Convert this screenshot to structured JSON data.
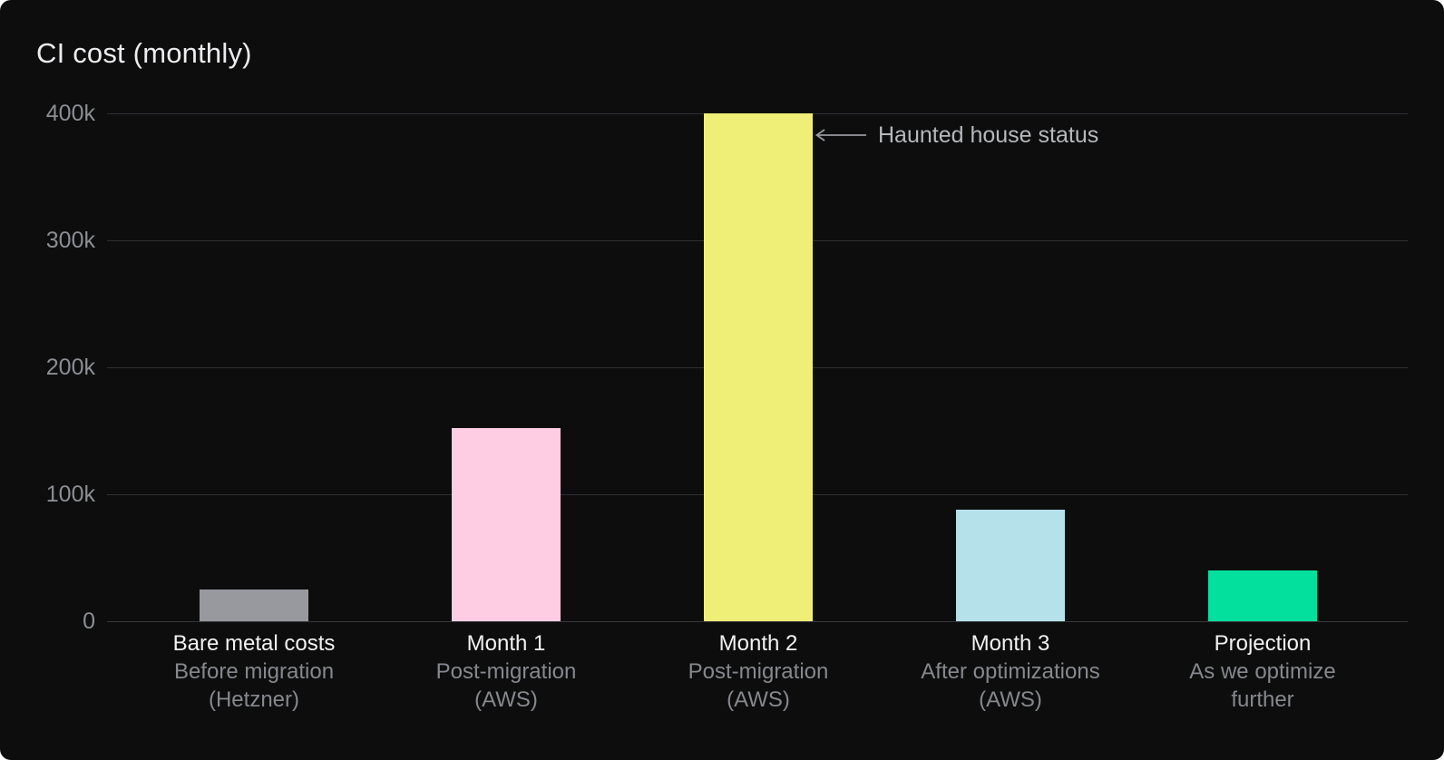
{
  "chart_data": {
    "type": "bar",
    "title": "CI cost (monthly)",
    "xlabel": "",
    "ylabel": "",
    "ylim": [
      0,
      400000
    ],
    "grid": "horizontal",
    "legend": "none",
    "categories": [
      {
        "label": "Bare metal costs",
        "sub_lines": [
          "Before migration",
          "(Hetzner)"
        ]
      },
      {
        "label": "Month 1",
        "sub_lines": [
          "Post-migration",
          "(AWS)"
        ]
      },
      {
        "label": "Month 2",
        "sub_lines": [
          "Post-migration",
          "(AWS)"
        ]
      },
      {
        "label": "Month 3",
        "sub_lines": [
          "After optimizations",
          "(AWS)"
        ]
      },
      {
        "label": "Projection",
        "sub_lines": [
          "As we optimize",
          "further"
        ]
      }
    ],
    "values": [
      25000,
      152000,
      400000,
      88000,
      40000
    ],
    "bar_colors": [
      "#97999e",
      "#fecde3",
      "#efee77",
      "#b5e1eb",
      "#03e09d"
    ],
    "yticks": [
      {
        "value": 400000,
        "label": "400k"
      },
      {
        "value": 300000,
        "label": "300k"
      },
      {
        "value": 200000,
        "label": "200k"
      },
      {
        "value": 100000,
        "label": "100k"
      },
      {
        "value": 0,
        "label": "0"
      }
    ],
    "annotation": {
      "text": "Haunted house status",
      "icon": "long-left-arrow",
      "target_category": "Month 2"
    }
  },
  "colors": {
    "background": "#0d0d0e",
    "title": "#ececee",
    "tick_label": "#8b8e93",
    "gridline": "#2e3033",
    "baseline": "#37383b",
    "category_label": "#f2f2f3",
    "category_sub": "#85888d",
    "annotation_text": "#b6b8bb",
    "arrow": "#97999e"
  }
}
